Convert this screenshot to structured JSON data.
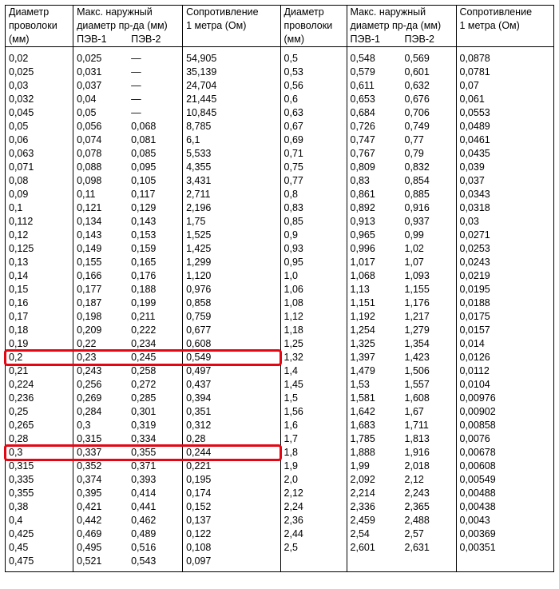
{
  "headers": {
    "dia": "Диаметр\nпроволоки\n(мм)",
    "od": "Макс. наружный\nдиаметр пр-да (мм)",
    "pev1": "ПЭВ-1",
    "pev2": "ПЭВ-2",
    "res": "Сопротивление\n1 метра (Ом)"
  },
  "em_dash": "—",
  "left_rows": [
    {
      "d": "0,02",
      "p1": "0,025",
      "p2": null,
      "r": "54,905"
    },
    {
      "d": "0,025",
      "p1": "0,031",
      "p2": null,
      "r": "35,139"
    },
    {
      "d": "0,03",
      "p1": "0,037",
      "p2": null,
      "r": "24,704"
    },
    {
      "d": "0,032",
      "p1": "0,04",
      "p2": null,
      "r": "21,445"
    },
    {
      "d": "0,045",
      "p1": "0,05",
      "p2": null,
      "r": "10,845"
    },
    {
      "d": "0,05",
      "p1": "0,056",
      "p2": "0,068",
      "r": "8,785"
    },
    {
      "d": "0,06",
      "p1": "0,074",
      "p2": "0,081",
      "r": "6,1"
    },
    {
      "d": "0,063",
      "p1": "0,078",
      "p2": "0,085",
      "r": "5,533"
    },
    {
      "d": "0,071",
      "p1": "0,088",
      "p2": "0,095",
      "r": "4,355"
    },
    {
      "d": "0,08",
      "p1": "0,098",
      "p2": "0,105",
      "r": "3,431"
    },
    {
      "d": "0,09",
      "p1": "0,11",
      "p2": "0,117",
      "r": "2,711"
    },
    {
      "d": "0,1",
      "p1": "0,121",
      "p2": "0,129",
      "r": "2,196"
    },
    {
      "d": "0,112",
      "p1": "0,134",
      "p2": "0,143",
      "r": "1,75"
    },
    {
      "d": "0,12",
      "p1": "0,143",
      "p2": "0,153",
      "r": "1,525"
    },
    {
      "d": "0,125",
      "p1": "0,149",
      "p2": "0,159",
      "r": "1,425"
    },
    {
      "d": "0,13",
      "p1": "0,155",
      "p2": "0,165",
      "r": "1,299"
    },
    {
      "d": "0,14",
      "p1": "0,166",
      "p2": "0,176",
      "r": "1,120"
    },
    {
      "d": "0,15",
      "p1": "0,177",
      "p2": "0,188",
      "r": "0,976"
    },
    {
      "d": "0,16",
      "p1": "0,187",
      "p2": "0,199",
      "r": "0,858"
    },
    {
      "d": "0,17",
      "p1": "0,198",
      "p2": "0,211",
      "r": "0,759"
    },
    {
      "d": "0,18",
      "p1": "0,209",
      "p2": "0,222",
      "r": "0,677"
    },
    {
      "d": "0,19",
      "p1": "0,22",
      "p2": "0,234",
      "r": "0,608"
    },
    {
      "d": "0,2",
      "p1": "0,23",
      "p2": "0,245",
      "r": "0,549",
      "hl": true
    },
    {
      "d": "0,21",
      "p1": "0,243",
      "p2": "0,258",
      "r": "0,497"
    },
    {
      "d": "0,224",
      "p1": "0,256",
      "p2": "0,272",
      "r": "0,437"
    },
    {
      "d": "0,236",
      "p1": "0,269",
      "p2": "0,285",
      "r": "0,394"
    },
    {
      "d": "0,25",
      "p1": "0,284",
      "p2": "0,301",
      "r": "0,351"
    },
    {
      "d": "0,265",
      "p1": "0,3",
      "p2": "0,319",
      "r": "0,312"
    },
    {
      "d": "0,28",
      "p1": "0,315",
      "p2": "0,334",
      "r": "0,28"
    },
    {
      "d": "0,3",
      "p1": "0,337",
      "p2": "0,355",
      "r": "0,244",
      "hl": true
    },
    {
      "d": "0,315",
      "p1": "0,352",
      "p2": "0,371",
      "r": "0,221"
    },
    {
      "d": "0,335",
      "p1": "0,374",
      "p2": "0,393",
      "r": "0,195"
    },
    {
      "d": "0,355",
      "p1": "0,395",
      "p2": "0,414",
      "r": "0,174"
    },
    {
      "d": "0,38",
      "p1": "0,421",
      "p2": "0,441",
      "r": "0,152"
    },
    {
      "d": "0,4",
      "p1": "0,442",
      "p2": "0,462",
      "r": "0,137"
    },
    {
      "d": "0,425",
      "p1": "0,469",
      "p2": "0,489",
      "r": "0,122"
    },
    {
      "d": "0,45",
      "p1": "0,495",
      "p2": "0,516",
      "r": "0,108"
    },
    {
      "d": "0,475",
      "p1": "0,521",
      "p2": "0,543",
      "r": "0,097"
    }
  ],
  "right_rows": [
    {
      "d": "0,5",
      "p1": "0,548",
      "p2": "0,569",
      "r": "0,0878"
    },
    {
      "d": "0,53",
      "p1": "0,579",
      "p2": "0,601",
      "r": "0,0781"
    },
    {
      "d": "0,56",
      "p1": "0,611",
      "p2": "0,632",
      "r": "0,07"
    },
    {
      "d": "0,6",
      "p1": "0,653",
      "p2": "0,676",
      "r": "0,061"
    },
    {
      "d": "0,63",
      "p1": "0,684",
      "p2": "0,706",
      "r": "0,0553"
    },
    {
      "d": "0,67",
      "p1": "0,726",
      "p2": "0,749",
      "r": "0,0489"
    },
    {
      "d": "0,69",
      "p1": "0,747",
      "p2": "0,77",
      "r": "0,0461"
    },
    {
      "d": "0,71",
      "p1": "0,767",
      "p2": "0,79",
      "r": "0,0435"
    },
    {
      "d": "0,75",
      "p1": "0,809",
      "p2": "0,832",
      "r": "0,039"
    },
    {
      "d": "0,77",
      "p1": "0,83",
      "p2": "0,854",
      "r": "0,037"
    },
    {
      "d": "0,8",
      "p1": "0,861",
      "p2": "0,885",
      "r": "0,0343"
    },
    {
      "d": "0,83",
      "p1": "0,892",
      "p2": "0,916",
      "r": "0,0318"
    },
    {
      "d": "0,85",
      "p1": "0,913",
      "p2": "0,937",
      "r": "0,03"
    },
    {
      "d": "0,9",
      "p1": "0,965",
      "p2": "0,99",
      "r": "0,0271"
    },
    {
      "d": "0,93",
      "p1": "0,996",
      "p2": "1,02",
      "r": "0,0253"
    },
    {
      "d": "0,95",
      "p1": "1,017",
      "p2": "1,07",
      "r": "0,0243"
    },
    {
      "d": "1,0",
      "p1": "1,068",
      "p2": "1,093",
      "r": "0,0219"
    },
    {
      "d": "1,06",
      "p1": "1,13",
      "p2": "1,155",
      "r": "0,0195"
    },
    {
      "d": "1,08",
      "p1": "1,151",
      "p2": "1,176",
      "r": "0,0188"
    },
    {
      "d": "1,12",
      "p1": "1,192",
      "p2": "1,217",
      "r": "0,0175"
    },
    {
      "d": "1,18",
      "p1": "1,254",
      "p2": "1,279",
      "r": "0,0157"
    },
    {
      "d": "1,25",
      "p1": "1,325",
      "p2": "1,354",
      "r": "0,014"
    },
    {
      "d": "1,32",
      "p1": "1,397",
      "p2": "1,423",
      "r": "0,0126"
    },
    {
      "d": "1,4",
      "p1": "1,479",
      "p2": "1,506",
      "r": "0,0112"
    },
    {
      "d": "1,45",
      "p1": "1,53",
      "p2": "1,557",
      "r": "0,0104"
    },
    {
      "d": "1,5",
      "p1": "1,581",
      "p2": "1,608",
      "r": "0,00976"
    },
    {
      "d": "1,56",
      "p1": "1,642",
      "p2": "1,67",
      "r": "0,00902"
    },
    {
      "d": "1,6",
      "p1": "1,683",
      "p2": "1,711",
      "r": "0,00858"
    },
    {
      "d": "1,7",
      "p1": "1,785",
      "p2": "1,813",
      "r": "0,0076"
    },
    {
      "d": "1,8",
      "p1": "1,888",
      "p2": "1,916",
      "r": "0,00678"
    },
    {
      "d": "1,9",
      "p1": "1,99",
      "p2": "2,018",
      "r": "0,00608"
    },
    {
      "d": "2,0",
      "p1": "2,092",
      "p2": "2,12",
      "r": "0,00549"
    },
    {
      "d": "2,12",
      "p1": "2,214",
      "p2": "2,243",
      "r": "0,00488"
    },
    {
      "d": "2,24",
      "p1": "2,336",
      "p2": "2,365",
      "r": "0,00438"
    },
    {
      "d": "2,36",
      "p1": "2,459",
      "p2": "2,488",
      "r": "0,0043"
    },
    {
      "d": "2,44",
      "p1": "2,54",
      "p2": "2,57",
      "r": "0,00369"
    },
    {
      "d": "2,5",
      "p1": "2,601",
      "p2": "2,631",
      "r": "0,00351"
    }
  ],
  "highlight_color": "#e30613"
}
